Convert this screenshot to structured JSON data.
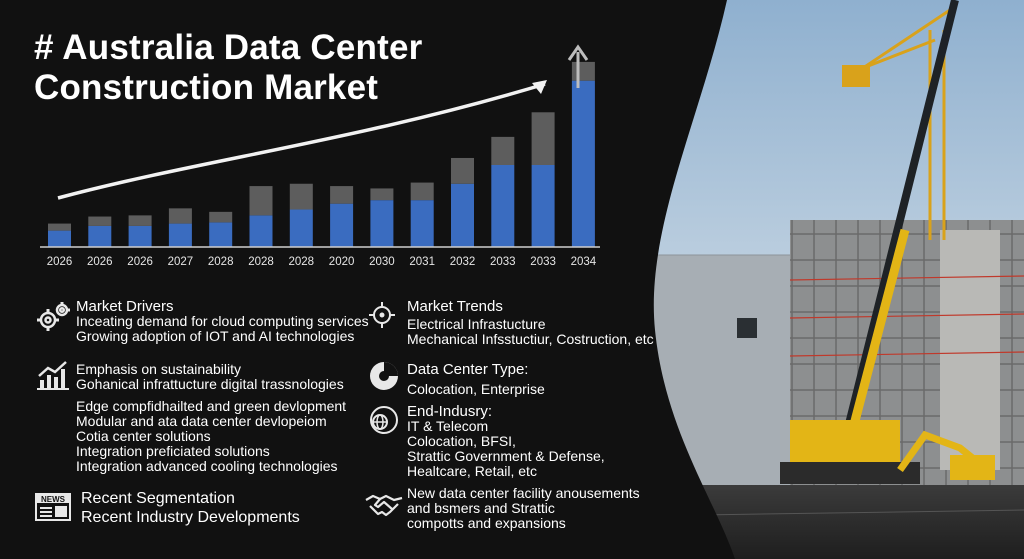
{
  "title": {
    "line1": "# Australia Data Center",
    "line2": "Construction Market"
  },
  "chart_data": {
    "type": "bar",
    "categories": [
      "2026",
      "2026",
      "2026",
      "2027",
      "2028",
      "2028",
      "2028",
      "2020",
      "2030",
      "2031",
      "2032",
      "2033",
      "2033",
      "2034"
    ],
    "series": [
      {
        "values": [
          14,
          18,
          18,
          20,
          21,
          27,
          32,
          37,
          40,
          40,
          54,
          70,
          70,
          142
        ]
      },
      {
        "values": [
          6,
          8,
          9,
          13,
          9,
          25,
          22,
          15,
          10,
          15,
          22,
          24,
          45,
          16
        ]
      }
    ],
    "colors": [
      "#3a6cc0",
      "#5d5d5d"
    ],
    "ylim": [
      0,
      175
    ]
  },
  "market_drivers": {
    "heading": "Market Drivers",
    "lines": [
      "Inceating demand for cloud computing services",
      "Growing adoption of IOT and AI technologies"
    ]
  },
  "sustainability": {
    "lines": [
      "Emphasis on sustainability",
      "Gohanical infrattucture digital trassnologies"
    ]
  },
  "edge": {
    "lines": [
      "Edge compfidhailted and green devlopment",
      "Modular and ata data center devlopeiom",
      "Cotia center solutions",
      "Integration preficiated solutions",
      "Integration advanced cooling technologies"
    ]
  },
  "recent": {
    "lines": [
      "Recent Segmentation",
      "Recent Industry Developments"
    ],
    "icon_label": "NEWS"
  },
  "market_trends": {
    "heading": "Market Trends",
    "lines": [
      "Electrical Infrastucture",
      "Mechanical Infsstuctiur, Costruction, etc"
    ]
  },
  "dc_type": {
    "heading": "Data Center Type:",
    "lines": [
      "Colocation, Enterprise"
    ]
  },
  "end_industry": {
    "heading": "End-Indusry:",
    "lines": [
      "IT & Telecom",
      "Colocation, BFSI,",
      "Strattic Government & Defense,",
      "Healtcare, Retail, etc"
    ]
  },
  "new_dc": {
    "lines": [
      "New data center facility anousements",
      "and bsmers and Strattic",
      "compotts and expansions"
    ]
  },
  "icons": [
    "gears-icon",
    "growth-chart-icon",
    "news-icon",
    "crosshair-icon",
    "pie-chart-icon",
    "globe-icon",
    "handshake-icon",
    "trend-arrow-icon"
  ]
}
